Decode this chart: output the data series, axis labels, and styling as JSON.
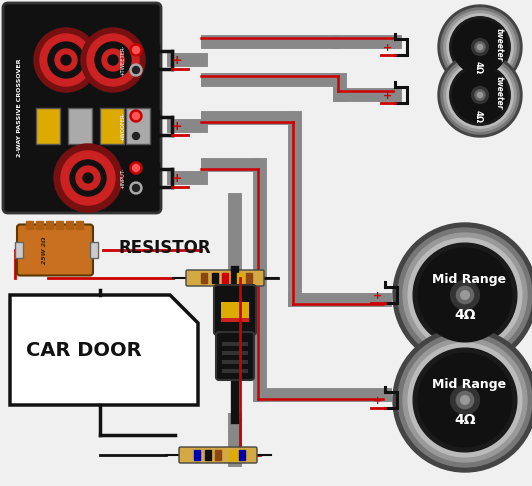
{
  "bg_color": "#f0f0f0",
  "resistor_label": "RESISTOR",
  "car_door_label": "CAR DOOR",
  "tweeter_label": "tweeter",
  "midrange_label": "Mid Range",
  "ohm_label": "4Ω",
  "gray": "#888888",
  "darkgray": "#555555",
  "lightgray": "#aaaaaa",
  "red": "#cc0000",
  "black": "#111111",
  "white": "#ffffff",
  "crossover_bg": "#111111",
  "coil_outer": "#881111",
  "coil_mid": "#cc2222",
  "cap_yellow": "#ddaa00",
  "cap_gray": "#aaaaaa",
  "resistor_orange": "#c87020",
  "plug_body": "#222222",
  "plug_yellow": "#ddaa00",
  "plug_red": "#cc2222",
  "band_colors": [
    "#8B4513",
    "#111111",
    "#cc0000",
    "#ddaa00",
    "#8B4513"
  ],
  "band_colors2": [
    "#0000aa",
    "#111111",
    "#8B4513",
    "#ddaa00",
    "#0000aa"
  ]
}
